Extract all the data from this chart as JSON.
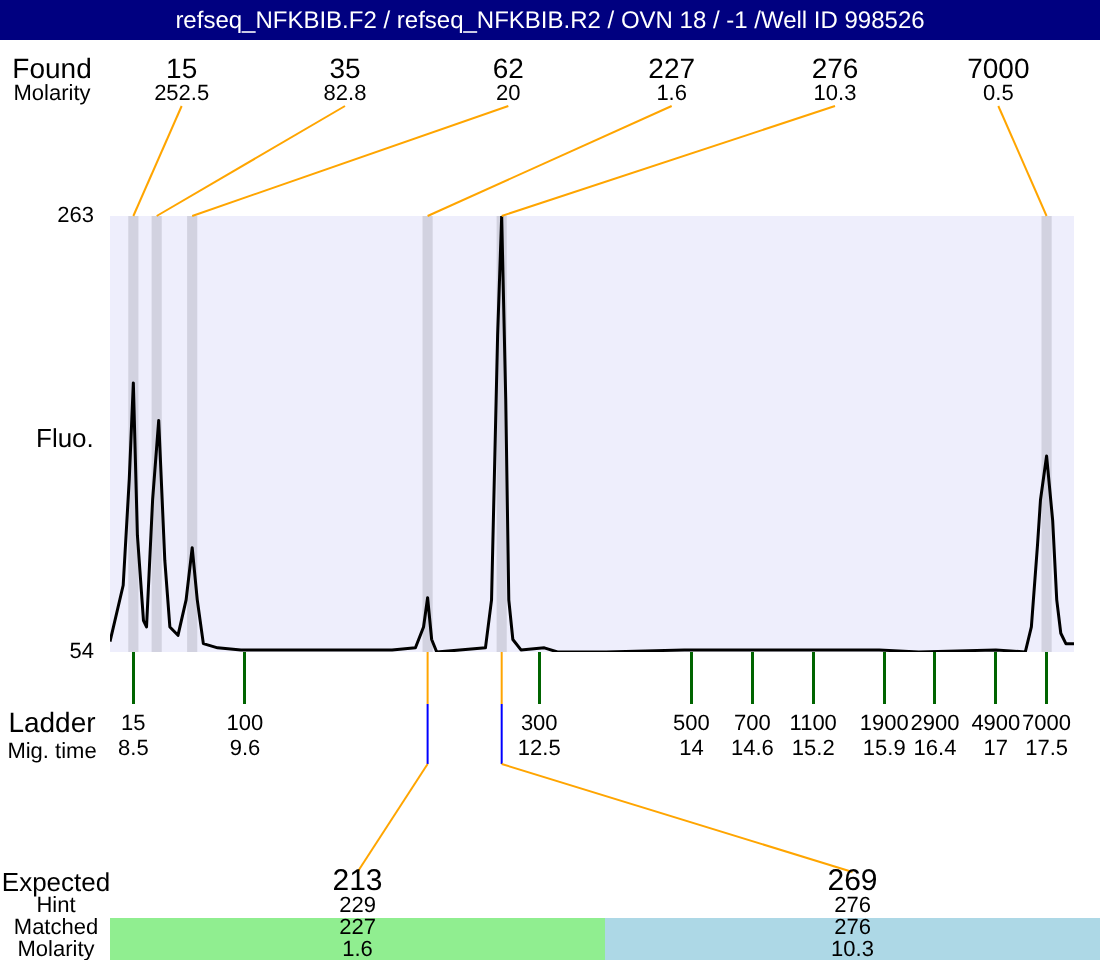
{
  "chart_data": {
    "type": "line",
    "title": "refseq_NFKBIB.F2 / refseq_NFKBIB.R2 / OVN 18 / -1 /Well ID 998526",
    "xlabel": "Mig. time",
    "ylabel": "Fluo.",
    "x": [
      8.27,
      8.4,
      8.46,
      8.5,
      8.54,
      8.6,
      8.63,
      8.69,
      8.75,
      8.81,
      8.86,
      8.94,
      9.02,
      9.08,
      9.13,
      9.19,
      9.33,
      9.56,
      10.09,
      11.05,
      11.28,
      11.36,
      11.4,
      11.44,
      11.49,
      11.97,
      12.03,
      12.09,
      12.13,
      12.17,
      12.2,
      12.24,
      12.32,
      12.55,
      12.68,
      13.16,
      13.93,
      15.85,
      16.24,
      17.0,
      17.29,
      17.35,
      17.41,
      17.44,
      17.5,
      17.56,
      17.6,
      17.64,
      17.69,
      17.77
    ],
    "series": [
      {
        "color": "#000000",
        "values": [
          59,
          86,
          137,
          183,
          110,
          69,
          66,
          127,
          165,
          98,
          66,
          62,
          79,
          104,
          79,
          58,
          56,
          55,
          55,
          55,
          56,
          66,
          80,
          60,
          54,
          56,
          79,
          206,
          263,
          175,
          79,
          60,
          55,
          56,
          54,
          54,
          55,
          55,
          54,
          55,
          54,
          66,
          105,
          127,
          148,
          117,
          79,
          63,
          58,
          58
        ]
      }
    ],
    "xlim": [
      8.27,
      17.77
    ],
    "ylim": [
      54,
      263
    ],
    "yticks": [
      54,
      263
    ],
    "xticks": [
      8.5,
      9.6,
      12.5,
      14,
      14.6,
      15.2,
      15.9,
      16.4,
      17,
      17.5
    ],
    "bands": [
      {
        "axis": "x",
        "from": 8.45,
        "to": 8.55,
        "label": "15\n252.5",
        "color": "#d2d2e0"
      },
      {
        "axis": "x",
        "from": 8.68,
        "to": 8.78,
        "label": "35\n82.8",
        "color": "#d2d2e0"
      },
      {
        "axis": "x",
        "from": 9.03,
        "to": 9.13,
        "label": "62\n20",
        "color": "#d2d2e0"
      },
      {
        "axis": "x",
        "from": 11.35,
        "to": 11.45,
        "label": "227\n1.6",
        "color": "#d2d2e0"
      },
      {
        "axis": "x",
        "from": 12.08,
        "to": 12.18,
        "label": "276\n10.3",
        "color": "#d2d2e0"
      },
      {
        "axis": "x",
        "from": 17.45,
        "to": 17.55,
        "label": "7000\n0.5",
        "color": "#d2d2e0"
      }
    ],
    "annotations": [
      "Found\nMolarity",
      "Ladder",
      "15",
      "100",
      "300",
      "500",
      "700",
      "1100",
      "1900",
      "2900",
      "4900",
      "7000",
      "Expected\nHint\nMatched\nMolarity",
      {
        "text": "213\n229\n227\n1.6",
        "x": 11.4
      },
      {
        "text": "269\n276\n276\n10.3",
        "x": 12.13
      }
    ],
    "grid": false,
    "legend": false,
    "marker": "none",
    "line_style": "solid"
  }
}
